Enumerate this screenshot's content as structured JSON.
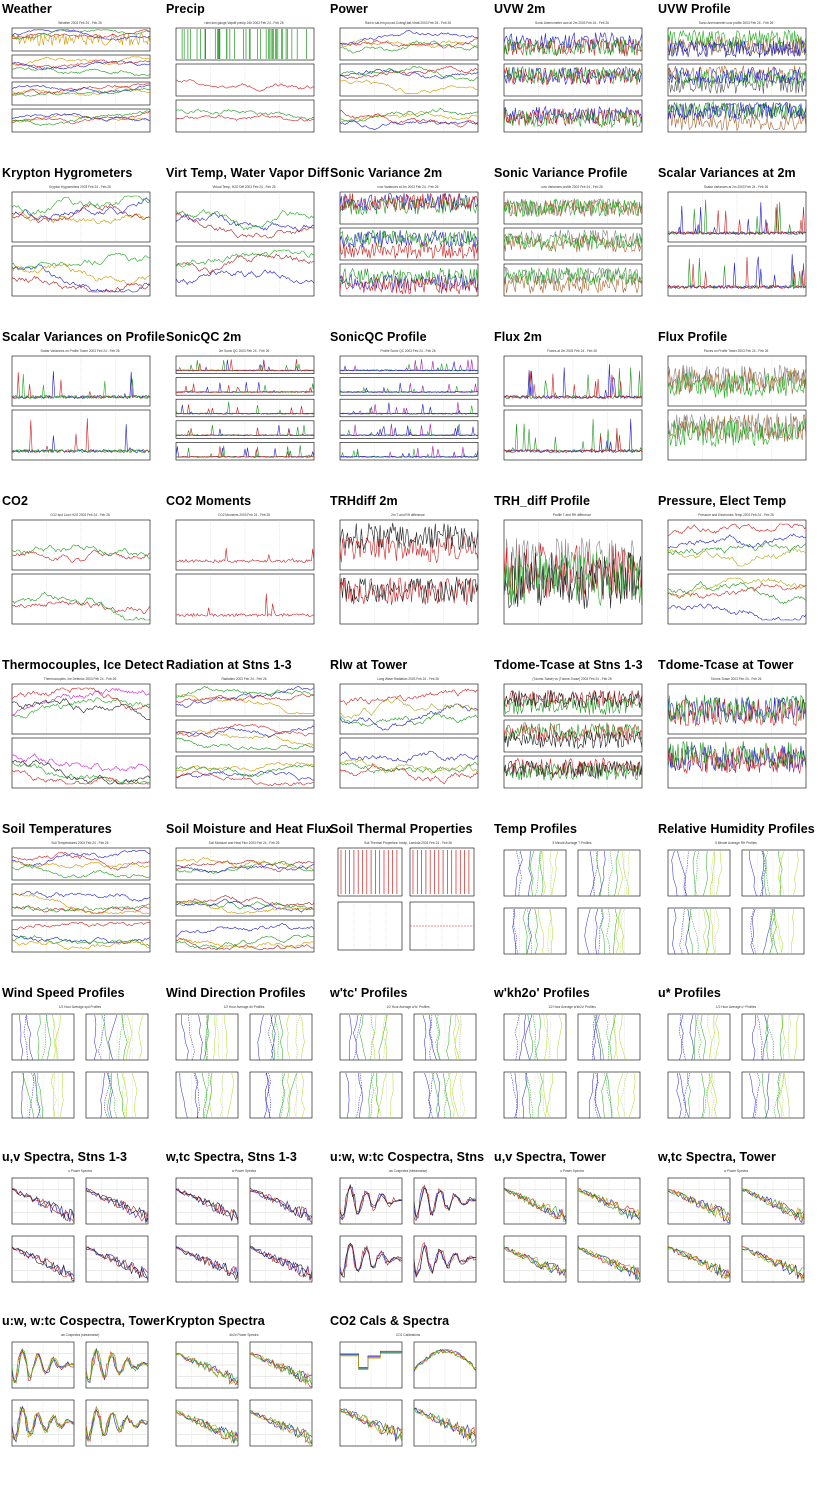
{
  "page": {
    "layout": "grid",
    "columns": 5
  },
  "plots": [
    {
      "title": "Weather",
      "type": "ts4",
      "colors": [
        "#cc9900",
        "#2222cc",
        "#cc2222",
        "#229922"
      ],
      "subtitle": "Weather 2003 Feb 24 - Feb 26"
    },
    {
      "title": "Precip",
      "type": "ts3p",
      "colors": [
        "#229922",
        "#cc2222",
        "#229922"
      ],
      "subtitle": "rainr,tcm gauge,Vapdif precip 24h 2003 Feb 24 - Feb 26"
    },
    {
      "title": "Power",
      "type": "ts3",
      "colors": [
        "#cc9900",
        "#cc2222",
        "#229922",
        "#2222cc"
      ],
      "subtitle": "Rad in,sat,bm,pw,rad,Cnbngl,bat,Vbatt 2003 Feb 24 - Feb 26"
    },
    {
      "title": "UVW 2m",
      "type": "ts3n",
      "colors": [
        "#2222cc",
        "#cc2222",
        "#229922"
      ],
      "subtitle": "Sonic Anemometer uvw at 2m 2003 Feb 24 - Feb 26"
    },
    {
      "title": "UVW Profile",
      "type": "ts3n",
      "colors": [
        "#555555",
        "#aa6633",
        "#22aa22",
        "#2222cc"
      ],
      "subtitle": "Sonic Anemometer uvw profile 2003 Feb 24 - Feb 26"
    },
    {
      "title": "Krypton Hygrometers",
      "type": "ts2",
      "colors": [
        "#cc9900",
        "#2222cc",
        "#aa2222",
        "#22aa22"
      ],
      "subtitle": "Krypton Hygrometers 2003 Feb 24 - Feb 26"
    },
    {
      "title": "Virt Temp, Water Vapor Diff",
      "type": "ts2",
      "colors": [
        "#2222cc",
        "#aa2222",
        "#22aa22"
      ],
      "subtitle": "Virtual Temp, H2O Diff 2003 Feb 24 - Feb 26"
    },
    {
      "title": "Sonic Variance 2m",
      "type": "ts3n",
      "colors": [
        "#2222cc",
        "#229922",
        "#cc2222"
      ],
      "subtitle": "uvw Variances at 2m 2003 Feb 24 - Feb 26"
    },
    {
      "title": "Sonic Variance Profile",
      "type": "ts3n",
      "colors": [
        "#888888",
        "#aa6633",
        "#22aa22"
      ],
      "subtitle": "uvw Variances profile 2003 Feb 24 - Feb 26"
    },
    {
      "title": "Scalar Variances at 2m",
      "type": "ts2s",
      "colors": [
        "#229922",
        "#2222cc",
        "#cc2222"
      ],
      "subtitle": "Scalar Variances at 2m 2003 Feb 24 - Feb 26"
    },
    {
      "title": "Scalar Variances on Profile",
      "type": "ts2s",
      "colors": [
        "#cc2222",
        "#2222cc",
        "#22aa22"
      ],
      "subtitle": "Scalar Variances on Profile Tower 2003 Feb 24 - Feb 26"
    },
    {
      "title": "SonicQC 2m",
      "type": "ts5",
      "colors": [
        "#2222cc",
        "#229922",
        "#cc2222"
      ],
      "subtitle": "2m Sonic QC 2003 Feb 24 - Feb 26"
    },
    {
      "title": "SonicQC Profile",
      "type": "ts5",
      "colors": [
        "#aa22aa",
        "#22aa22",
        "#2222cc"
      ],
      "subtitle": "Profile Sonic QC 2003 Feb 24 - Feb 26"
    },
    {
      "title": "Flux 2m",
      "type": "ts2s",
      "colors": [
        "#229922",
        "#2222cc",
        "#cc2222"
      ],
      "subtitle": "Fluxes at 2m 2003 Feb 24 - Feb 26"
    },
    {
      "title": "Flux Profile",
      "type": "ts2n",
      "colors": [
        "#888888",
        "#aa6633",
        "#22aa22"
      ],
      "subtitle": "Fluxes on Profile Tower 2003 Feb 24 - Feb 26"
    },
    {
      "title": "CO2",
      "type": "ts2",
      "colors": [
        "#cc2222",
        "#229922"
      ],
      "subtitle": "CO2 and Licor H2O 2003 Feb 24 - Feb 26"
    },
    {
      "title": "CO2 Moments",
      "type": "ts2s",
      "colors": [
        "#cc2222"
      ],
      "subtitle": "CO2 Moments 2003 Feb 24 - Feb 26"
    },
    {
      "title": "TRHdiff 2m",
      "type": "ts2n",
      "colors": [
        "#cc2222",
        "#222222"
      ],
      "subtitle": "2m T and RH difference"
    },
    {
      "title": "TRH_diff Profile",
      "type": "ts1n",
      "colors": [
        "#888888",
        "#cc2222",
        "#22aa22",
        "#222222"
      ],
      "subtitle": "Profile T and RH difference"
    },
    {
      "title": "Pressure, Elect Temp",
      "type": "ts2",
      "colors": [
        "#2222cc",
        "#cc2222",
        "#aaaa22",
        "#229922"
      ],
      "subtitle": "Pressure and Electronics Temp 2003 Feb 24 - Feb 26"
    },
    {
      "title": "Thermocouples, Ice Detect",
      "type": "ts2",
      "colors": [
        "#cc22cc",
        "#22aa22",
        "#cc2222",
        "#222222"
      ],
      "subtitle": "Thermocouples, Ice Detector 2003 Feb 24 - Feb 26"
    },
    {
      "title": "Radiation at Stns 1-3",
      "type": "ts3",
      "colors": [
        "#cc9900",
        "#2222cc",
        "#229922",
        "#cc2222"
      ],
      "subtitle": "Radiation 2003 Feb 24 - Feb 26"
    },
    {
      "title": "Rlw at Tower",
      "type": "ts2",
      "colors": [
        "#2222cc",
        "#cc2222",
        "#229922",
        "#aaaa22"
      ],
      "subtitle": "Long Wave Radiation 2003 Feb 24 - Feb 26"
    },
    {
      "title": "Tdome-Tcase at Stns 1-3",
      "type": "ts3n",
      "colors": [
        "#cc2222",
        "#229922",
        "#222222"
      ],
      "subtitle": "(Tdome-Tcase) vs (Tdome-Tcase) 2003 Feb 24 - Feb 26"
    },
    {
      "title": "Tdome-Tcase at Tower",
      "type": "ts2n",
      "colors": [
        "#2222cc",
        "#cc2222",
        "#229922"
      ],
      "subtitle": "Tdome-Tcase 2003 Feb 24 - Feb 26"
    },
    {
      "title": "Soil Temperatures",
      "type": "ts3f",
      "colors": [
        "#cc2222",
        "#2222cc",
        "#229922",
        "#cc9900"
      ],
      "subtitle": "Soil Temperatures 2003 Feb 24 - Feb 26"
    },
    {
      "title": "Soil Moisture and Heat Flux",
      "type": "ts3f",
      "colors": [
        "#aa2222",
        "#229922",
        "#2222cc",
        "#cc9900"
      ],
      "subtitle": "Soil Moisture and Heat Flux 2003 Feb 24 - Feb 26"
    },
    {
      "title": "Soil Thermal Properties",
      "type": "soil",
      "colors": [
        "#cc2222",
        "#cc2222"
      ],
      "subtitle": "Soil Thermal Properties: tmotp, Lambda 2003 Feb 24 - Feb 26"
    },
    {
      "title": "Temp Profiles",
      "type": "prof",
      "colors": [
        "#2222cc",
        "#22aa22",
        "#aadd22"
      ],
      "subtitle": "5 Minute Average T Profiles"
    },
    {
      "title": "Relative Humidity Profiles",
      "type": "prof",
      "colors": [
        "#2222cc",
        "#22aa22",
        "#aadd22"
      ],
      "subtitle": "5 Minute Average RH Profiles"
    },
    {
      "title": "Wind Speed Profiles",
      "type": "prof",
      "colors": [
        "#2222cc",
        "#22aa22",
        "#aadd22"
      ],
      "subtitle": "1/2 Hour Average spd Profiles"
    },
    {
      "title": "Wind Direction Profiles",
      "type": "prof",
      "colors": [
        "#2222cc",
        "#22aa22",
        "#aadd22"
      ],
      "subtitle": "1/2 Hour Average dir Profiles"
    },
    {
      "title": "w'tc' Profiles",
      "type": "prof",
      "colors": [
        "#2222cc",
        "#22aa22",
        "#aadd22"
      ],
      "subtitle": "1/2 Hour Average w'tc' Profiles"
    },
    {
      "title": "w'kh2o' Profiles",
      "type": "prof",
      "colors": [
        "#2222cc",
        "#22aa22",
        "#aadd22"
      ],
      "subtitle": "1/2 Hour Average w'kh2o' Profiles"
    },
    {
      "title": "u* Profiles",
      "type": "prof",
      "colors": [
        "#2222cc",
        "#22aa22",
        "#aadd22"
      ],
      "subtitle": "1/2 Hour Average u* Profiles"
    },
    {
      "title": "u,v Spectra, Stns 1-3",
      "type": "spec",
      "colors": [
        "#2222cc",
        "#cc2222",
        "#222222"
      ],
      "subtitle": "u Power Spectra"
    },
    {
      "title": "w,tc Spectra, Stns 1-3",
      "type": "spec",
      "colors": [
        "#2222cc",
        "#cc2222",
        "#222222"
      ],
      "subtitle": "w Power Spectra"
    },
    {
      "title": "u:w, w:tc Cospectra, Stns",
      "type": "cosp",
      "colors": [
        "#2222cc",
        "#cc2222",
        "#222222"
      ],
      "subtitle": "uw Cospectra (streamwise)"
    },
    {
      "title": "u,v Spectra, Tower",
      "type": "spec",
      "colors": [
        "#cc2222",
        "#2222cc",
        "#22aa22",
        "#cc9900"
      ],
      "subtitle": "u Power Spectra"
    },
    {
      "title": "w,tc Spectra, Tower",
      "type": "spec",
      "colors": [
        "#cc2222",
        "#2222cc",
        "#22aa22",
        "#cc9900"
      ],
      "subtitle": "w Power Spectra"
    },
    {
      "title": "u:w, w:tc Cospectra, Tower",
      "type": "cosp",
      "colors": [
        "#cc2222",
        "#2222cc",
        "#22aa22",
        "#cc9900"
      ],
      "subtitle": "uw Cospectra (streamwise)"
    },
    {
      "title": "Krypton Spectra",
      "type": "spec",
      "colors": [
        "#2222cc",
        "#cc2222",
        "#22aa22",
        "#aaaa22"
      ],
      "subtitle": "kh2o Power Spectra"
    },
    {
      "title": "CO2 Cals & Spectra",
      "type": "co2",
      "colors": [
        "#cc2222",
        "#2222cc",
        "#22aa22",
        "#cc9900"
      ],
      "subtitle": "CO2 Calibrations"
    }
  ]
}
